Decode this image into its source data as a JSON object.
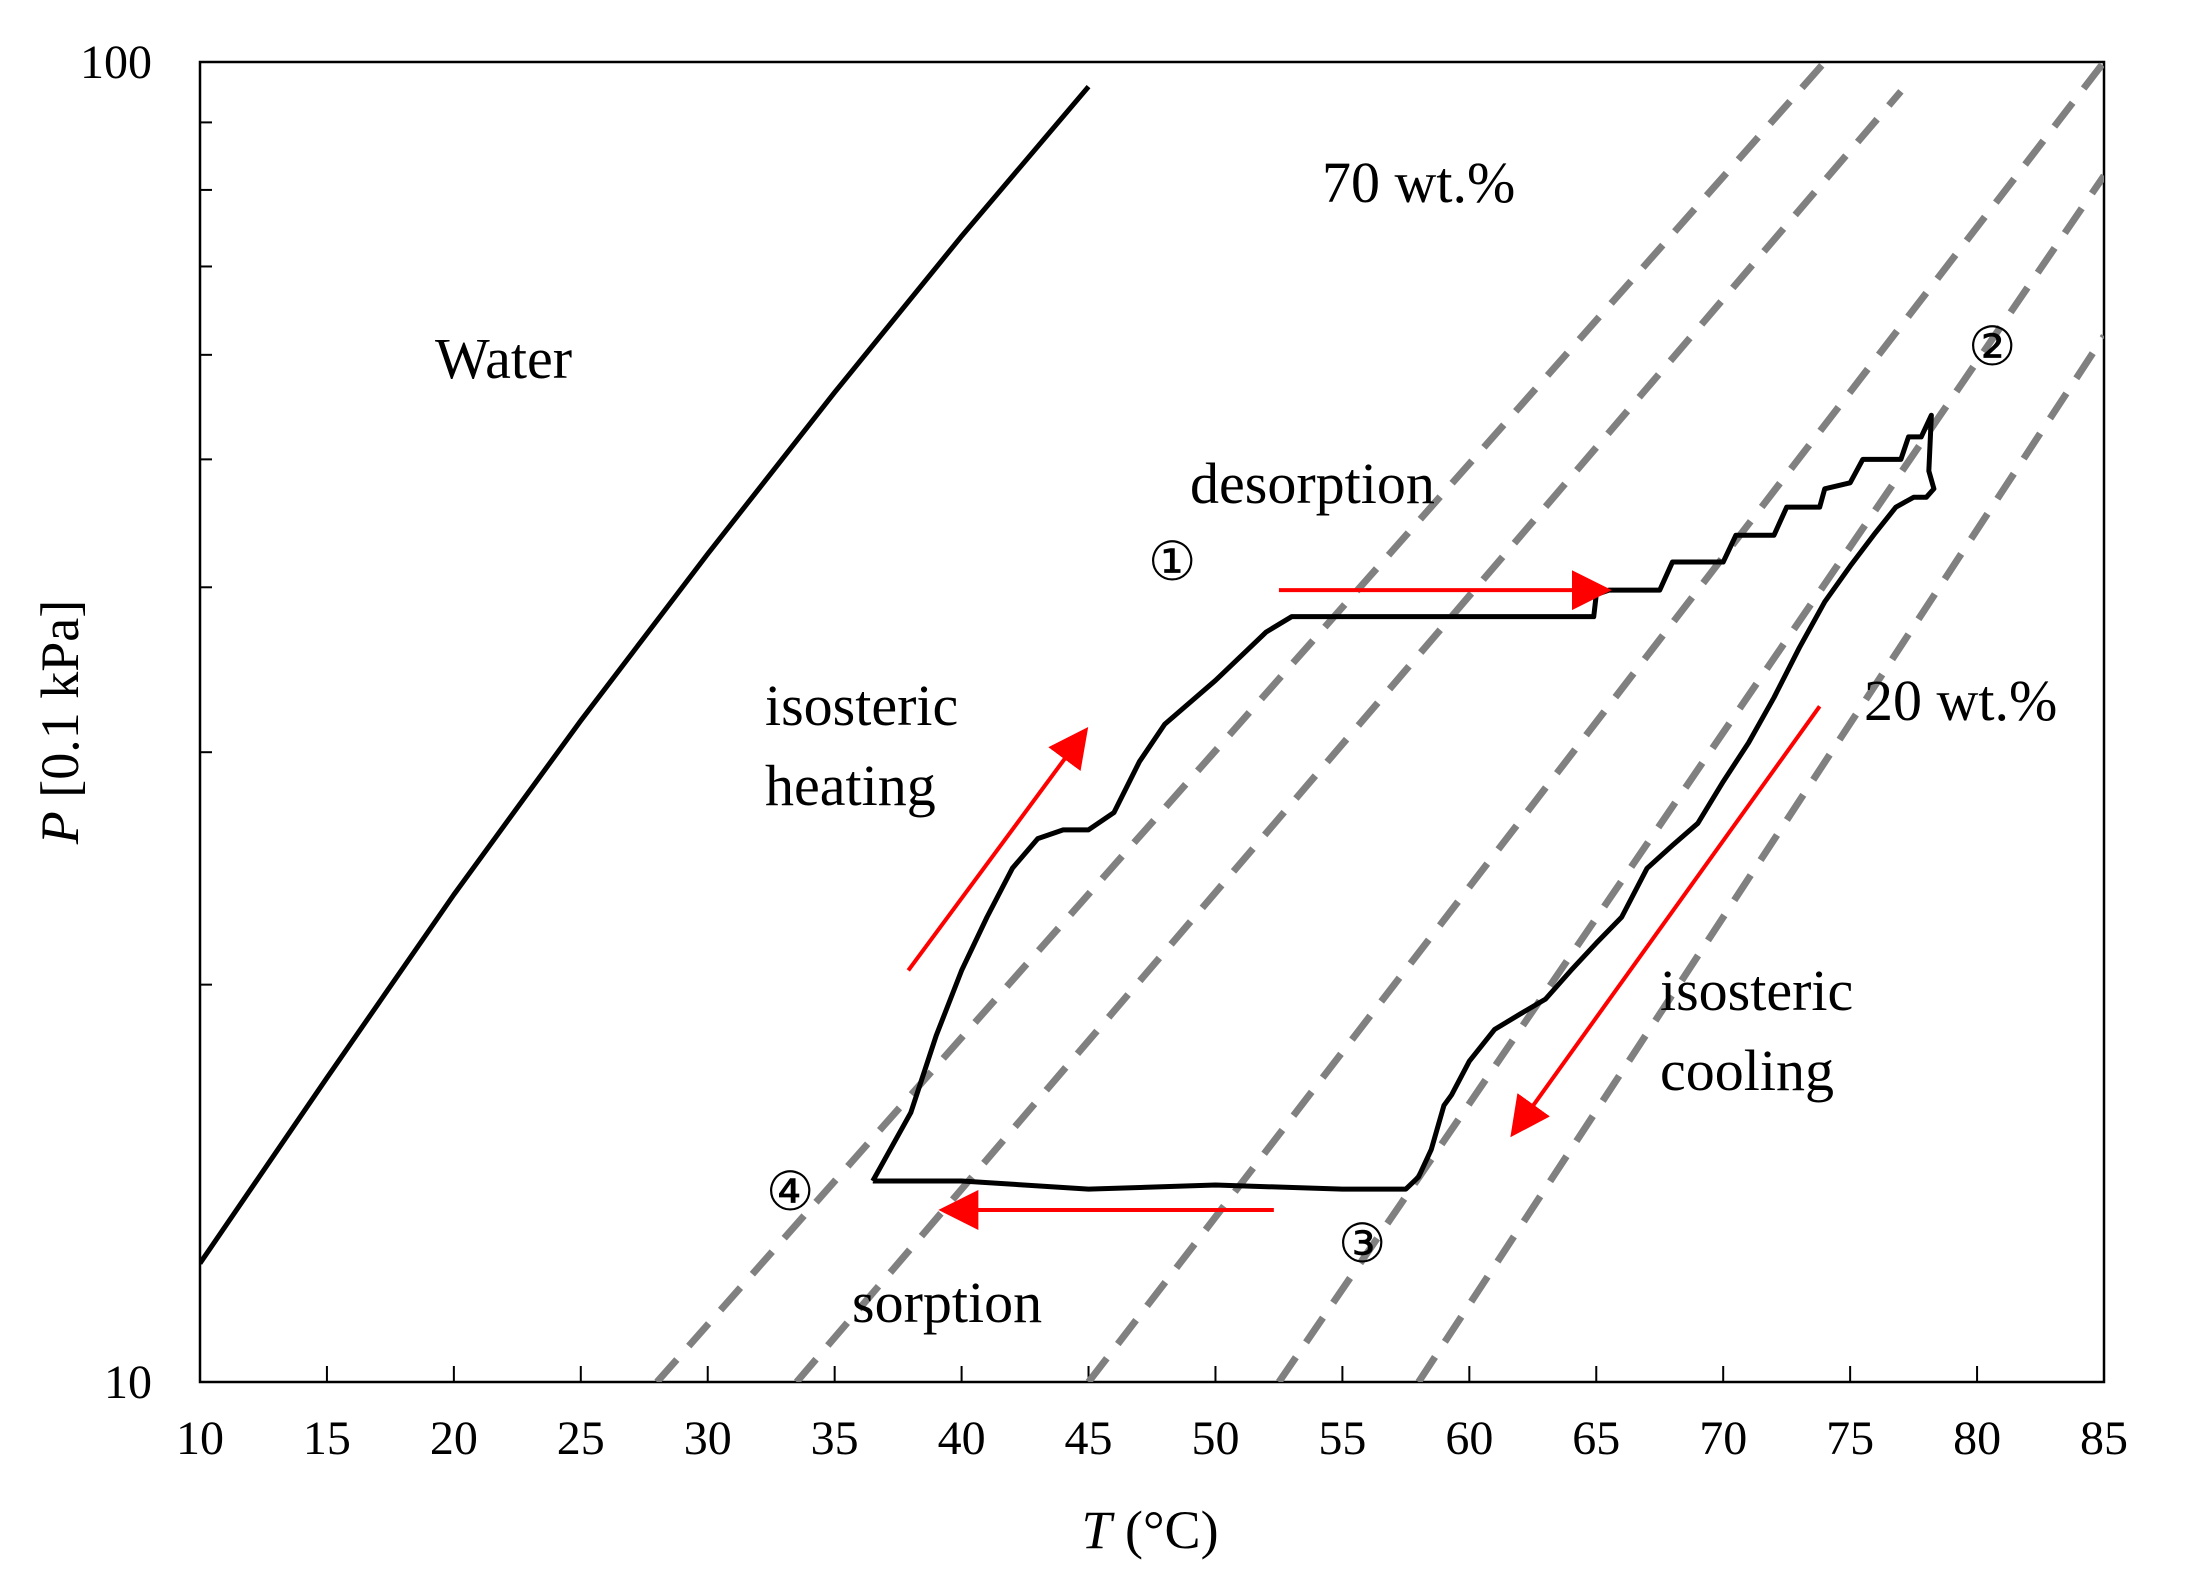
{
  "chart_data": {
    "type": "line",
    "xlabel_italic": "T",
    "xlabel_rest": " (°C)",
    "ylabel_italic": "P",
    "ylabel_rest": " [0.1 kPa]",
    "xlim": [
      10,
      85
    ],
    "ylim": [
      10,
      100
    ],
    "yscale": "log",
    "xticks": [
      10,
      15,
      20,
      25,
      30,
      35,
      40,
      45,
      50,
      55,
      60,
      65,
      70,
      75,
      80,
      85
    ],
    "xtick_labels": [
      "10",
      "15",
      "20",
      "25",
      "30",
      "35",
      "40",
      "45",
      "50",
      "55",
      "60",
      "65",
      "70",
      "75",
      "80",
      "85"
    ],
    "yticks_labeled": [
      10,
      100
    ],
    "ytick_labels": [
      "10",
      "100"
    ],
    "yticks_minor": [
      20,
      30,
      40,
      50,
      60,
      70,
      80,
      90
    ],
    "grid": false,
    "colors": {
      "cycle": "#000000",
      "water": "#000000",
      "isostere": "#808080",
      "arrow": "#ff0000"
    },
    "water_curve": {
      "name": "Water",
      "x": [
        10,
        15,
        20,
        25,
        30,
        35,
        40,
        45
      ],
      "y": [
        12.3,
        17.0,
        23.4,
        31.7,
        42.4,
        56.2,
        73.8,
        95.8
      ]
    },
    "isosteres": [
      {
        "name": "70 wt.%",
        "x": [
          28,
          74
        ],
        "y": [
          10.0,
          100.0
        ]
      },
      {
        "name": "isostere-2",
        "x": [
          33.5,
          77
        ],
        "y": [
          10.0,
          95.0
        ]
      },
      {
        "name": "isostere-3",
        "x": [
          45,
          85
        ],
        "y": [
          10.0,
          100.0
        ]
      },
      {
        "name": "isostere-4",
        "x": [
          52.5,
          85
        ],
        "y": [
          10.0,
          82.0
        ]
      },
      {
        "name": "20 wt.%",
        "x": [
          58,
          85
        ],
        "y": [
          10.0,
          62.0
        ]
      }
    ],
    "cycle": {
      "name": "sorption cycle",
      "x": [
        36.5,
        38,
        39,
        40,
        41,
        42,
        43,
        44,
        45,
        46,
        47,
        48,
        50,
        52,
        53,
        55,
        60,
        64.9,
        65,
        65.5,
        67.5,
        68,
        70,
        70.5,
        72,
        72.5,
        73.8,
        74,
        75,
        75.5,
        77,
        77.3,
        77.8,
        78.2,
        78.1,
        78.3,
        78.0,
        77.5,
        76.8,
        76,
        75,
        74,
        73,
        72,
        71,
        70,
        69,
        68,
        67,
        66,
        65,
        64,
        63,
        62,
        61,
        60,
        59.3,
        59,
        58.5,
        58,
        57.5,
        55,
        50,
        45,
        40,
        36.5
      ],
      "y": [
        14.2,
        16.0,
        18.3,
        20.5,
        22.5,
        24.5,
        25.8,
        26.2,
        26.2,
        27.0,
        29.5,
        31.5,
        34.0,
        37.0,
        38.0,
        38.0,
        38.0,
        38.0,
        39.5,
        39.8,
        39.8,
        41.8,
        41.8,
        43.8,
        43.8,
        46.0,
        46.0,
        47.5,
        48.0,
        50.0,
        50.0,
        52.0,
        52.0,
        54.0,
        49.0,
        47.5,
        46.8,
        46.8,
        46.0,
        44.0,
        41.5,
        39.0,
        36.0,
        33.0,
        30.5,
        28.5,
        26.5,
        25.5,
        24.5,
        22.5,
        21.5,
        20.5,
        19.5,
        19.0,
        18.5,
        17.5,
        16.5,
        16.2,
        15.0,
        14.3,
        14.0,
        14.0,
        14.1,
        14.0,
        14.2,
        14.2
      ]
    },
    "annotations": {
      "water": "Water",
      "wt70": "70 wt.%",
      "wt20": "20 wt.%",
      "desorption": "desorption",
      "isosteric_heating_1": "isosteric",
      "isosteric_heating_2": "heating",
      "isosteric_cooling_1": "isosteric",
      "isosteric_cooling_2": "cooling",
      "sorption": "sorption"
    },
    "points": {
      "p1": "①",
      "p2": "②",
      "p3": "③",
      "p4": "④"
    },
    "arrows": [
      {
        "name": "heating-arrow",
        "from": [
          37.9,
          20.5
        ],
        "to": [
          44.8,
          31.0
        ]
      },
      {
        "name": "desorption-arrow",
        "from": [
          52.5,
          39.8
        ],
        "to": [
          65.3,
          39.8
        ]
      },
      {
        "name": "cooling-arrow",
        "from": [
          73.8,
          32.5
        ],
        "to": [
          61.8,
          15.5
        ]
      },
      {
        "name": "sorption-arrow",
        "from": [
          52.3,
          13.5
        ],
        "to": [
          39.4,
          13.5
        ]
      }
    ]
  }
}
